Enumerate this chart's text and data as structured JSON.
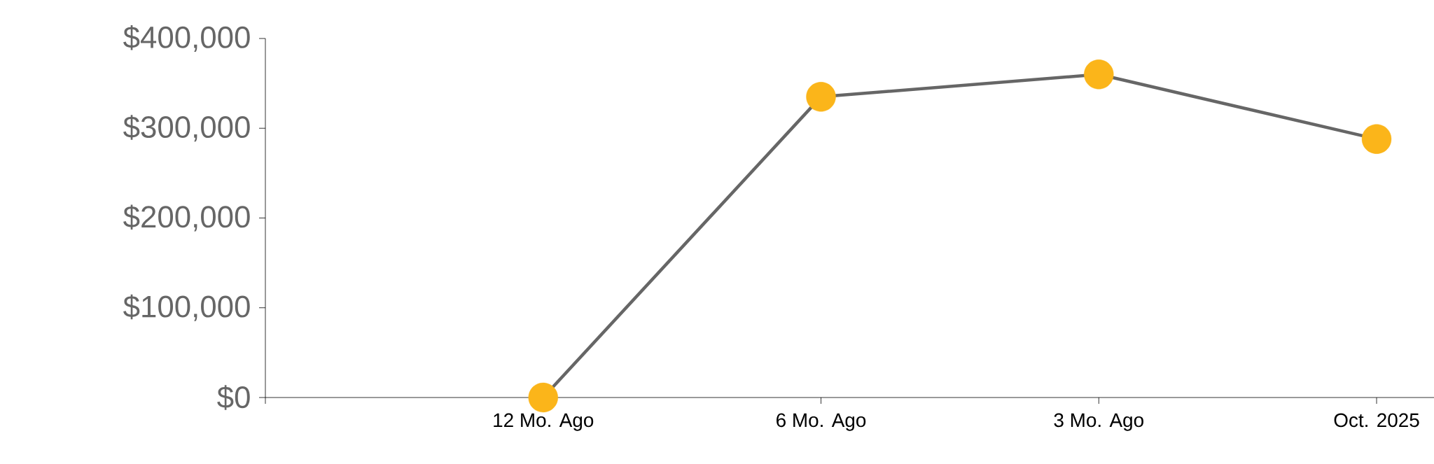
{
  "chart_data": {
    "type": "line",
    "categories": [
      null,
      "12 Mo. Ago",
      "6 Mo. Ago",
      "3 Mo. Ago",
      "Oct. 2025"
    ],
    "series": [
      {
        "color": "#666666",
        "colors": [
          null,
          "#fbb51a",
          "#fbb51a",
          "#fbb51a",
          "#fbb51a"
        ],
        "values": [
          null,
          0,
          335000,
          360000,
          288000
        ]
      }
    ],
    "marker": "circle",
    "line_style": "solid",
    "grid": false,
    "ylim": [
      0,
      400000
    ],
    "yticks": [
      {
        "value": 0,
        "label": "$0"
      },
      {
        "value": 100000,
        "label": "$100,000"
      },
      {
        "value": 200000,
        "label": "$200,000"
      },
      {
        "value": 300000,
        "label": "$300,000"
      },
      {
        "value": 400000,
        "label": "$400,000"
      }
    ]
  }
}
